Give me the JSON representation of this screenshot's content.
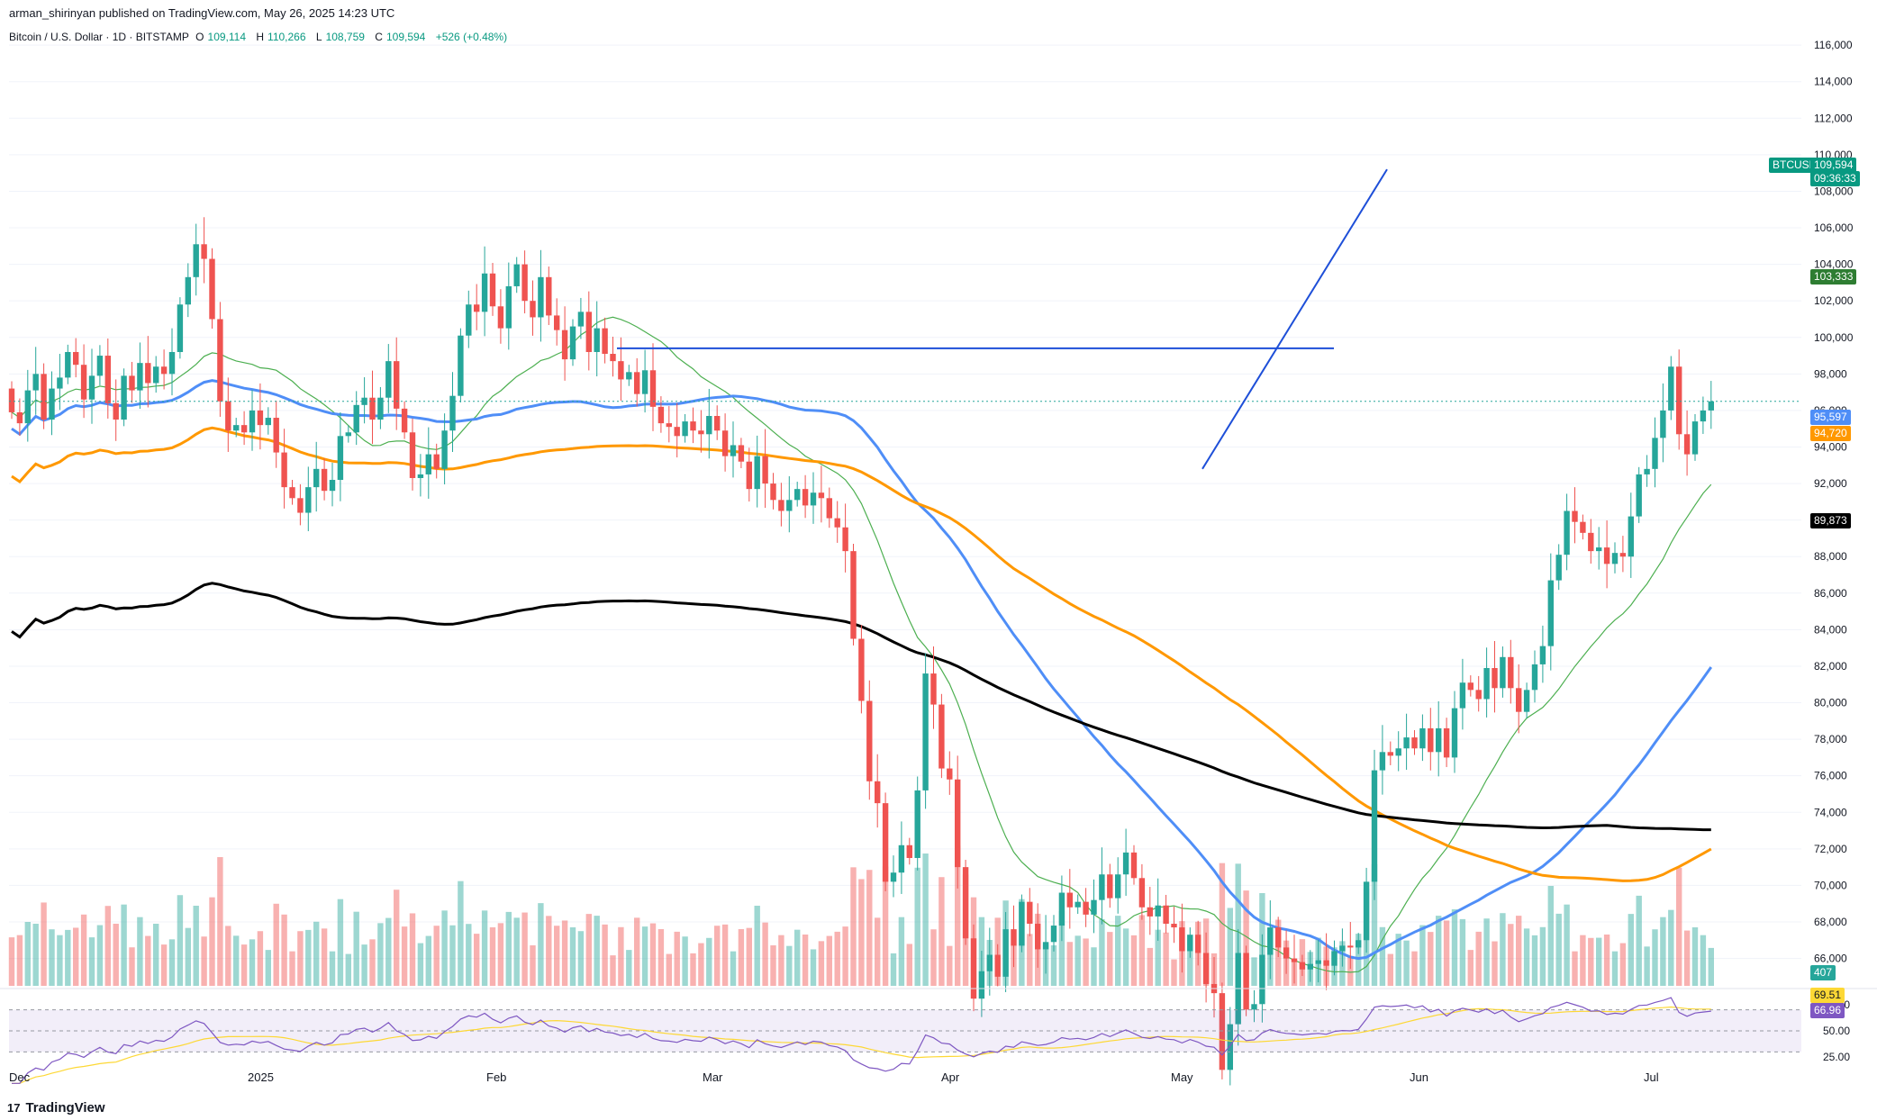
{
  "header": {
    "published": "arman_shirinyan published on TradingView.com, May 26, 2025 14:23 UTC"
  },
  "symbol": {
    "name": "Bitcoin / U.S. Dollar · 1D · BITSTAMP",
    "open_label": "O",
    "open": "109,114",
    "high_label": "H",
    "high": "110,266",
    "low_label": "L",
    "low": "108,759",
    "close_label": "C",
    "close": "109,594",
    "change": "+526 (+0.48%)"
  },
  "price_tags": {
    "btc_label": "BTCUSD",
    "btc_price": "109,594",
    "countdown": "09:36:33",
    "ema_fast": "103,333",
    "ma50": "95,597",
    "ma100": "94,720",
    "ma200": "89,873",
    "volume": "407",
    "rsi": "69.51",
    "rsi_ma": "66.96"
  },
  "footer": {
    "logo": "TradingView"
  },
  "colors": {
    "up": "#26a69a",
    "down": "#ef5350",
    "ma_blue": "#4f8ef7",
    "ma_orange": "#ff9800",
    "ma_black": "#000000",
    "ma_green": "#4caf50",
    "trendline": "#1e4fd8",
    "rsi": "#7e57c2",
    "rsi_ma": "#fdd835"
  },
  "chart_data": {
    "type": "candlestick",
    "y_axis": {
      "ticks": [
        "116,000",
        "114,000",
        "112,000",
        "110,000",
        "108,000",
        "106,000",
        "104,000",
        "102,000",
        "100,000",
        "98,000",
        "96,000",
        "94,000",
        "92,000",
        "90,000",
        "88,000",
        "86,000",
        "84,000",
        "82,000",
        "80,000",
        "78,000",
        "76,000",
        "74,000",
        "72,000",
        "70,000",
        "68,000",
        "66,000"
      ],
      "range": [
        64500,
        116500
      ]
    },
    "x_axis": {
      "ticks": [
        "Dec",
        "2025",
        "Feb",
        "Mar",
        "Apr",
        "May",
        "Jun",
        "Jul"
      ]
    },
    "rsi_axis": {
      "ticks": [
        "75.00",
        "50.00",
        "25.00"
      ]
    },
    "start_price": 97200,
    "daily_changes": [
      -1300,
      -600,
      1800,
      900,
      -2500,
      1700,
      600,
      1400,
      -700,
      -1900,
      1300,
      1100,
      -2600,
      -900,
      2400,
      -800,
      1500,
      -1100,
      900,
      -400,
      1200,
      2600,
      1500,
      1800,
      -800,
      -3300,
      -4500,
      -1600,
      300,
      -400,
      1200,
      -800,
      400,
      -1900,
      -1900,
      -600,
      -800,
      1400,
      1000,
      -1200,
      600,
      2400,
      200,
      1500,
      400,
      -1200,
      1200,
      2000,
      -2600,
      -1300,
      -2500,
      200,
      1100,
      -800,
      2100,
      1900,
      3300,
      1700,
      -400,
      2100,
      -1800,
      -1200,
      2300,
      1200,
      -2000,
      -900,
      2200,
      -2100,
      -800,
      -1600,
      1800,
      800,
      -2200,
      1300,
      -1400,
      -400,
      -1000,
      400,
      -1200,
      1300,
      -2000,
      -900,
      -200,
      -500,
      800,
      -500,
      -200,
      1000,
      -800,
      -1400,
      600,
      -900,
      -1500,
      1800,
      -1500,
      -900,
      -600,
      600,
      600,
      -900,
      700,
      -300,
      -1100,
      -500,
      -1300,
      -4800,
      -3400,
      -4400,
      -1200,
      -4300,
      500,
      1500,
      -700,
      3700,
      6400,
      -1700,
      -3500,
      -600,
      -4800,
      -3900,
      -3300,
      1500,
      900,
      -1200,
      2600,
      -900,
      2400,
      -1200,
      -1400,
      400,
      900,
      1800,
      -800,
      300,
      -700,
      800,
      1400,
      -1300,
      1300,
      1200,
      -1400,
      -1600,
      -500,
      600,
      -1000,
      -200,
      -1300,
      900,
      -1000,
      -1700,
      -500,
      -4200,
      2500,
      3900,
      -3100,
      300,
      2700,
      1500,
      -1100,
      -600,
      -200,
      -400,
      300,
      200,
      -300,
      800,
      300,
      -100,
      400,
      3200,
      6100,
      1000,
      -200,
      400,
      600,
      -600,
      1100,
      -1300,
      1300,
      -1600,
      2700,
      1400,
      -400,
      -500,
      1700,
      -1100,
      1700,
      -1700,
      -1300,
      1200,
      1400,
      1000,
      3600,
      1400,
      2400,
      -600,
      -600,
      -1000,
      200,
      -900,
      600,
      -200,
      2200,
      2300,
      300,
      1700,
      1500,
      2400,
      -3700,
      -1100,
      1800,
      600,
      500
    ],
    "volume_units": "relative"
  }
}
